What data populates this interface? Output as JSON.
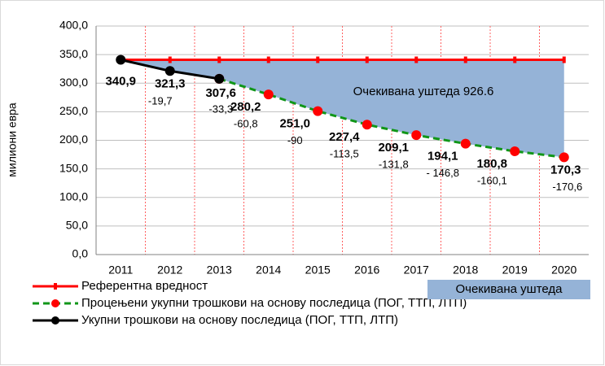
{
  "chart_data": {
    "type": "line",
    "y_axis_label": "милиони евра",
    "categories": [
      "2011",
      "2012",
      "2013",
      "2014",
      "2015",
      "2016",
      "2017",
      "2018",
      "2019",
      "2020"
    ],
    "ylim": [
      0,
      400
    ],
    "yticks": [
      {
        "value": 0,
        "label": "0,0"
      },
      {
        "value": 50,
        "label": "50,0"
      },
      {
        "value": 100,
        "label": "100,0"
      },
      {
        "value": 150,
        "label": "150,0"
      },
      {
        "value": 200,
        "label": "200,0"
      },
      {
        "value": 250,
        "label": "250,0"
      },
      {
        "value": 300,
        "label": "300,0"
      },
      {
        "value": 350,
        "label": "350,0"
      },
      {
        "value": 400,
        "label": "400,0"
      }
    ],
    "grid": true,
    "series": [
      {
        "name": "Референтна вредност",
        "color": "#ff0000",
        "marker_color": "#ff0000",
        "dash": false,
        "values": [
          340.9,
          340.9,
          340.9,
          340.9,
          340.9,
          340.9,
          340.9,
          340.9,
          340.9,
          340.9
        ]
      },
      {
        "name": "Процењени укупни трошкови на основу последица (ПОГ, ТТП, ЛТП)",
        "color": "#109618",
        "marker_color": "#ff0000",
        "dash": true,
        "label_color": "#ff0000",
        "values": [
          null,
          null,
          307.6,
          280.2,
          251.0,
          227.4,
          209.1,
          194.1,
          180.8,
          170.3
        ],
        "value_labels": [
          null,
          null,
          null,
          "280,2",
          "251,0",
          "227,4",
          "209,1",
          "194,1",
          "180,8",
          "170,3"
        ]
      },
      {
        "name": "Укупни трошкови на основу последица (ПОГ, ТТП, ЛТП)",
        "color": "#000000",
        "marker_color": "#000000",
        "dash": false,
        "label_color": "#000000",
        "values": [
          340.9,
          321.3,
          307.6,
          null,
          null,
          null,
          null,
          null,
          null,
          null
        ],
        "value_labels": [
          "340,9",
          "321,3",
          "307,6",
          null,
          null,
          null,
          null,
          null,
          null,
          null
        ]
      }
    ],
    "differences": {
      "values": [
        null,
        -19.7,
        -33.3,
        -60.8,
        -90,
        -113.5,
        -131.8,
        -146.8,
        -160.1,
        -170.6
      ],
      "value_labels": [
        null,
        "-19,7",
        "-33,3",
        "-60,8",
        "-90",
        "-113,5",
        "-131,8",
        "- 146,8",
        "-160,1",
        "-170,6"
      ],
      "colors": [
        null,
        "#595959",
        "#595959",
        "#f26060",
        "#f26060",
        "#f26060",
        "#f26060",
        "#f26060",
        "#f26060",
        "#f26060"
      ]
    },
    "savings_area": {
      "name": "Очекивана уштеда",
      "color": "#95b3d7"
    },
    "annotation": "Очекивана уштеда 926.6"
  }
}
